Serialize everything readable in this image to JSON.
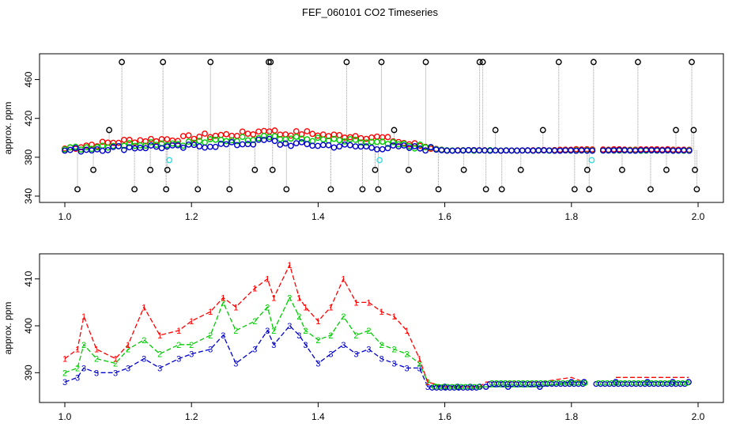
{
  "page_title": "FEF_060101  CO2 Timeseries",
  "chart_data": [
    {
      "type": "scatter",
      "title": "FEF_060101  CO2 Timeseries",
      "xlabel": "",
      "ylabel": "approx. ppm",
      "xlim": [
        1.0,
        2.0
      ],
      "ylim": [
        340,
        480
      ],
      "x_ticks": [
        1.0,
        1.2,
        1.4,
        1.6,
        1.8,
        2.0
      ],
      "x_tick_labels": [
        "1.0",
        "1.2",
        "1.4",
        "1.6",
        "1.8",
        "2.0"
      ],
      "y_ticks": [
        340,
        380,
        420,
        460
      ],
      "y_tick_labels": [
        "340",
        "380",
        "420",
        "460"
      ],
      "colors": {
        "s1": "#ff0000",
        "s2": "#00cc00",
        "s3": "#0000cc",
        "raw": "#000000",
        "flag": "#33dddd",
        "spike": "#9a9a9a"
      },
      "series": [
        {
          "name": "1",
          "color": "#ff0000",
          "x": [
            1.0,
            1.03,
            1.06,
            1.1,
            1.14,
            1.18,
            1.22,
            1.26,
            1.3,
            1.32,
            1.34,
            1.38,
            1.42,
            1.46,
            1.5,
            1.54,
            1.57,
            1.6,
            1.65,
            1.7,
            1.75,
            1.8,
            1.85,
            1.9,
            1.95,
            1.99
          ],
          "y": [
            389,
            392,
            394,
            397,
            398,
            399,
            402,
            403,
            405,
            409,
            404,
            405,
            402,
            402,
            400,
            394,
            391,
            387,
            387,
            387,
            387,
            388,
            388,
            388,
            388,
            388
          ]
        },
        {
          "name": "2",
          "color": "#00cc00",
          "x": [
            1.0,
            1.03,
            1.06,
            1.1,
            1.14,
            1.18,
            1.22,
            1.26,
            1.3,
            1.32,
            1.34,
            1.38,
            1.42,
            1.46,
            1.5,
            1.54,
            1.57,
            1.6,
            1.65,
            1.7,
            1.75,
            1.8,
            1.85,
            1.9,
            1.95,
            1.99
          ],
          "y": [
            388,
            390,
            392,
            393,
            395,
            394,
            396,
            398,
            400,
            404,
            399,
            399,
            397,
            396,
            394,
            392,
            390,
            387,
            387,
            387,
            387,
            387,
            387,
            387,
            387,
            387
          ]
        },
        {
          "name": "3",
          "color": "#0000cc",
          "x": [
            1.0,
            1.03,
            1.06,
            1.1,
            1.14,
            1.18,
            1.22,
            1.26,
            1.3,
            1.32,
            1.34,
            1.38,
            1.42,
            1.46,
            1.5,
            1.54,
            1.57,
            1.6,
            1.65,
            1.7,
            1.75,
            1.8,
            1.85,
            1.9,
            1.95,
            1.99
          ],
          "y": [
            387,
            388,
            389,
            390,
            391,
            390,
            392,
            393,
            395,
            398,
            394,
            393,
            392,
            391,
            390,
            390,
            389,
            387,
            387,
            387,
            387,
            387,
            387,
            387,
            387,
            387
          ]
        }
      ],
      "raw_markers": {
        "name": "black",
        "color": "#000000",
        "x": [
          1.02,
          1.045,
          1.07,
          1.09,
          1.11,
          1.135,
          1.155,
          1.16,
          1.162,
          1.21,
          1.23,
          1.26,
          1.3,
          1.322,
          1.325,
          1.328,
          1.35,
          1.42,
          1.445,
          1.47,
          1.49,
          1.495,
          1.5,
          1.52,
          1.543,
          1.57,
          1.59,
          1.63,
          1.655,
          1.66,
          1.665,
          1.68,
          1.69,
          1.72,
          1.755,
          1.78,
          1.805,
          1.825,
          1.828,
          1.835,
          1.88,
          1.905,
          1.925,
          1.95,
          1.965,
          1.99,
          1.993,
          1.995,
          1.998
        ],
        "y": [
          347,
          367,
          408,
          478,
          347,
          367,
          478,
          347,
          367,
          347,
          478,
          347,
          367,
          478,
          478,
          367,
          347,
          347,
          478,
          347,
          367,
          347,
          478,
          408,
          367,
          478,
          347,
          367,
          478,
          478,
          347,
          408,
          347,
          367,
          408,
          478,
          347,
          367,
          347,
          478,
          367,
          478,
          347,
          367,
          408,
          478,
          408,
          367,
          347
        ]
      },
      "flagged_points": {
        "name": "cyan",
        "color": "#33dddd",
        "x": [
          1.165,
          1.497,
          1.832
        ],
        "y": [
          377,
          377,
          377
        ]
      }
    },
    {
      "type": "line",
      "title": "",
      "xlabel": "",
      "ylabel": "approx. ppm",
      "xlim": [
        1.0,
        2.0
      ],
      "ylim": [
        385,
        414
      ],
      "x_ticks": [
        1.0,
        1.2,
        1.4,
        1.6,
        1.8,
        2.0
      ],
      "x_tick_labels": [
        "1.0",
        "1.2",
        "1.4",
        "1.6",
        "1.8",
        "2.0"
      ],
      "y_ticks": [
        390,
        400,
        410
      ],
      "y_tick_labels": [
        "390",
        "400",
        "410"
      ],
      "series": [
        {
          "name": "1",
          "marker": "1",
          "color": "#ff0000",
          "x": [
            1.0,
            1.02,
            1.03,
            1.05,
            1.08,
            1.1,
            1.125,
            1.15,
            1.18,
            1.2,
            1.23,
            1.25,
            1.27,
            1.3,
            1.32,
            1.33,
            1.355,
            1.37,
            1.38,
            1.4,
            1.42,
            1.44,
            1.46,
            1.48,
            1.5,
            1.52,
            1.54,
            1.56,
            1.573,
            1.6,
            1.62,
            1.64,
            1.655,
            1.665,
            1.7,
            1.75,
            1.8,
            1.82,
            1.83,
            1.87,
            1.92,
            1.96,
            1.985
          ],
          "y": [
            393,
            395,
            402,
            395,
            393,
            396,
            404,
            398,
            399,
            401,
            403,
            406,
            404,
            408,
            410,
            406,
            413,
            406,
            404,
            401,
            404,
            410,
            405,
            405,
            403,
            402,
            399,
            393,
            388,
            387,
            387,
            387,
            387,
            388,
            388,
            388,
            389,
            388,
            null,
            389,
            389,
            389,
            389
          ]
        },
        {
          "name": "2",
          "marker": "2",
          "color": "#00cc00",
          "x": [
            1.0,
            1.02,
            1.03,
            1.05,
            1.08,
            1.1,
            1.125,
            1.15,
            1.18,
            1.2,
            1.23,
            1.25,
            1.27,
            1.3,
            1.32,
            1.33,
            1.355,
            1.37,
            1.38,
            1.4,
            1.42,
            1.44,
            1.46,
            1.48,
            1.5,
            1.52,
            1.54,
            1.56,
            1.573,
            1.6,
            1.62,
            1.64,
            1.655,
            1.665,
            1.7,
            1.75,
            1.8,
            1.82,
            1.83,
            1.87,
            1.92,
            1.96,
            1.985
          ],
          "y": [
            390,
            391,
            396,
            393,
            392,
            395,
            397,
            394,
            396,
            396,
            398,
            405,
            399,
            401,
            404,
            399,
            406,
            402,
            399,
            397,
            398,
            402,
            398,
            399,
            396,
            395,
            394,
            392,
            388,
            387,
            387,
            387,
            387,
            387,
            387,
            387,
            388,
            388,
            null,
            388,
            388,
            388,
            388
          ]
        },
        {
          "name": "3",
          "marker": "3",
          "color": "#0000cc",
          "x": [
            1.0,
            1.02,
            1.03,
            1.05,
            1.08,
            1.1,
            1.125,
            1.15,
            1.18,
            1.2,
            1.23,
            1.25,
            1.27,
            1.3,
            1.32,
            1.33,
            1.355,
            1.37,
            1.38,
            1.4,
            1.42,
            1.44,
            1.46,
            1.48,
            1.5,
            1.52,
            1.54,
            1.56,
            1.573,
            1.6,
            1.62,
            1.64,
            1.655,
            1.665,
            1.7,
            1.75,
            1.8,
            1.82,
            1.83,
            1.87,
            1.92,
            1.96,
            1.985
          ],
          "y": [
            388,
            389,
            391,
            390,
            390,
            391,
            393,
            391,
            393,
            394,
            395,
            398,
            392,
            395,
            399,
            396,
            400,
            398,
            396,
            392,
            394,
            396,
            394,
            395,
            393,
            392,
            391,
            391,
            387,
            387,
            387,
            387,
            387,
            387,
            387,
            387,
            388,
            388,
            null,
            388,
            388,
            388,
            388
          ]
        }
      ]
    }
  ]
}
